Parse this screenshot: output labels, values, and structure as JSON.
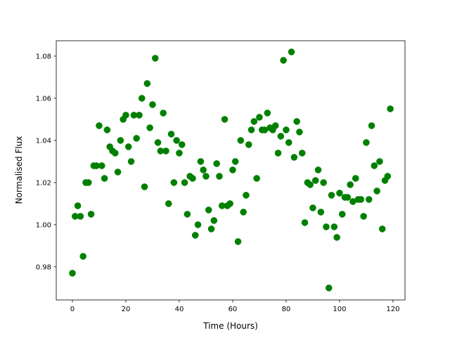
{
  "chart_data": {
    "type": "scatter",
    "title": "",
    "xlabel": "Time (Hours)",
    "ylabel": "Normalised Flux",
    "xlim": [
      -6.05,
      124.5
    ],
    "ylim": [
      0.9643,
      1.0873
    ],
    "xticks": [
      0,
      20,
      40,
      60,
      80,
      100,
      120
    ],
    "xtick_labels": [
      "0",
      "20",
      "40",
      "60",
      "80",
      "100",
      "120"
    ],
    "yticks": [
      0.98,
      1.0,
      1.02,
      1.04,
      1.06,
      1.08
    ],
    "ytick_labels": [
      "0.98",
      "1.00",
      "1.02",
      "1.04",
      "1.06",
      "1.08"
    ],
    "grid": false,
    "marker_color": "#008000",
    "x": [
      0,
      1,
      2,
      3,
      4,
      5,
      6,
      7,
      8,
      9,
      10,
      11,
      12,
      13,
      14,
      15,
      16,
      17,
      18,
      19,
      20,
      21,
      22,
      23,
      24,
      25,
      26,
      27,
      28,
      29,
      30,
      31,
      32,
      33,
      34,
      35,
      36,
      37,
      38,
      39,
      40,
      41,
      42,
      43,
      44,
      45,
      46,
      47,
      48,
      49,
      50,
      51,
      52,
      53,
      54,
      55,
      56,
      57,
      58,
      59,
      60,
      61,
      62,
      63,
      64,
      65,
      66,
      67,
      68,
      69,
      70,
      71,
      72,
      73,
      74,
      75,
      76,
      77,
      78,
      79,
      80,
      81,
      82,
      83,
      84,
      85,
      86,
      87,
      88,
      89,
      90,
      91,
      92,
      93,
      94,
      95,
      96,
      97,
      98,
      99,
      100,
      101,
      102,
      103,
      104,
      105,
      106,
      107,
      108,
      109,
      110,
      111,
      112,
      113,
      114,
      115,
      116,
      117,
      118,
      119
    ],
    "y": [
      0.977,
      1.004,
      1.009,
      1.004,
      0.985,
      1.02,
      1.02,
      1.005,
      1.028,
      1.028,
      1.047,
      1.028,
      1.022,
      1.045,
      1.037,
      1.035,
      1.034,
      1.025,
      1.04,
      1.05,
      1.052,
      1.037,
      1.03,
      1.052,
      1.041,
      1.052,
      1.06,
      1.018,
      1.067,
      1.046,
      1.057,
      1.079,
      1.039,
      1.035,
      1.053,
      1.035,
      1.01,
      1.043,
      1.02,
      1.04,
      1.034,
      1.038,
      1.02,
      1.005,
      1.023,
      1.022,
      0.995,
      1.0,
      1.03,
      1.026,
      1.023,
      1.007,
      0.998,
      1.002,
      1.029,
      1.023,
      1.009,
      1.05,
      1.009,
      1.01,
      1.026,
      1.03,
      0.992,
      1.04,
      1.006,
      1.014,
      1.038,
      1.045,
      1.049,
      1.022,
      1.051,
      1.045,
      1.045,
      1.053,
      1.046,
      1.045,
      1.047,
      1.034,
      1.042,
      1.078,
      1.045,
      1.039,
      1.082,
      1.032,
      1.049,
      1.044,
      1.034,
      1.001,
      1.02,
      1.019,
      1.008,
      1.021,
      1.026,
      1.006,
      1.02,
      0.999,
      0.97,
      1.014,
      0.999,
      0.994,
      1.015,
      1.005,
      1.013,
      1.013,
      1.019,
      1.011,
      1.022,
      1.012,
      1.012,
      1.004,
      1.039,
      1.012,
      1.047,
      1.028,
      1.016,
      1.03,
      0.998,
      1.021,
      1.023,
      1.055
    ]
  }
}
